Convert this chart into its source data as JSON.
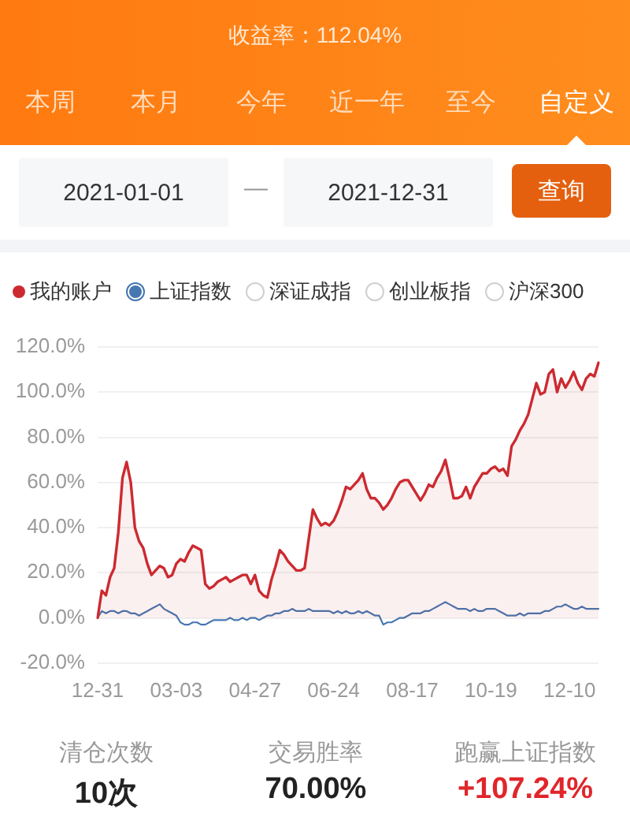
{
  "chart_data": {
    "type": "line",
    "subtitle": "收益率：112.04%",
    "annotations": [
      "本周",
      "本月",
      "今年",
      "近一年",
      "至今",
      "自定义",
      "2021-01-01",
      "—",
      "2021-12-31",
      "查询",
      "深证成指",
      "创业板指",
      "沪深300",
      "清仓次数",
      "10次",
      "交易胜率",
      "70.00%",
      "跑赢上证指数",
      "+107.24%"
    ],
    "categories": [
      "12-31",
      null,
      null,
      null,
      null,
      null,
      null,
      null,
      null,
      null,
      null,
      null,
      null,
      null,
      null,
      null,
      null,
      null,
      null,
      "03-03",
      null,
      null,
      null,
      null,
      null,
      null,
      null,
      null,
      null,
      null,
      null,
      null,
      null,
      null,
      null,
      null,
      null,
      null,
      "04-27",
      null,
      null,
      null,
      null,
      null,
      null,
      null,
      null,
      null,
      null,
      null,
      null,
      null,
      null,
      null,
      null,
      null,
      null,
      "06-24",
      null,
      null,
      null,
      null,
      null,
      null,
      null,
      null,
      null,
      null,
      null,
      null,
      null,
      null,
      null,
      null,
      null,
      null,
      "08-17",
      null,
      null,
      null,
      null,
      null,
      null,
      null,
      null,
      null,
      null,
      null,
      null,
      null,
      null,
      null,
      null,
      null,
      null,
      "10-19",
      null,
      null,
      null,
      null,
      null,
      null,
      null,
      null,
      null,
      null,
      null,
      null,
      null,
      null,
      null,
      null,
      null,
      null,
      "12-10",
      null,
      null,
      null,
      null,
      null,
      null,
      null
    ],
    "series": [
      {
        "name": "我的账户",
        "type": "area",
        "color": "#cc2a30",
        "values": [
          0,
          12,
          10,
          18,
          22,
          38,
          62,
          69,
          60,
          40,
          34,
          31,
          24,
          19,
          21,
          23,
          22,
          18,
          19,
          24,
          26,
          25,
          29,
          32,
          31,
          30,
          15,
          13,
          14,
          16,
          17,
          18,
          16,
          17,
          18,
          19,
          19,
          15,
          19,
          12,
          10,
          9,
          17,
          23,
          30,
          28,
          25,
          23,
          21,
          21,
          22,
          35,
          48,
          44,
          41,
          42,
          41,
          43,
          47,
          52,
          58,
          57,
          59,
          61,
          64,
          57,
          53,
          53,
          51,
          48,
          50,
          53,
          57,
          60,
          61,
          61,
          58,
          55,
          52,
          55,
          59,
          58,
          62,
          65,
          70,
          62,
          53,
          53,
          54,
          58,
          53,
          58,
          61,
          64,
          64,
          66,
          67,
          65,
          66,
          63,
          76,
          79,
          83,
          86,
          90,
          97,
          104,
          99,
          100,
          108,
          110,
          100,
          106,
          102,
          105,
          109,
          104,
          101,
          106,
          108,
          107,
          113
        ]
      },
      {
        "name": "上证指数",
        "type": "line",
        "color": "#4677b0",
        "values": [
          0,
          3,
          2,
          3,
          3,
          2,
          3,
          3,
          2,
          2,
          1,
          2,
          3,
          4,
          5,
          6,
          4,
          3,
          2,
          1,
          -2,
          -3,
          -3,
          -2,
          -2,
          -3,
          -3,
          -2,
          -1,
          -1,
          -1,
          -1,
          0,
          -1,
          -1,
          0,
          -1,
          0,
          0,
          -1,
          0,
          1,
          1,
          2,
          2,
          3,
          3,
          4,
          3,
          3,
          3,
          4,
          3,
          3,
          3,
          3,
          3,
          2,
          3,
          2,
          3,
          2,
          2,
          3,
          2,
          3,
          2,
          1,
          1,
          -3,
          -2,
          -2,
          -1,
          0,
          0,
          1,
          2,
          2,
          2,
          3,
          3,
          4,
          5,
          6,
          7,
          6,
          5,
          4,
          4,
          4,
          3,
          4,
          3,
          3,
          4,
          4,
          4,
          3,
          2,
          1,
          1,
          1,
          2,
          1,
          2,
          2,
          2,
          2,
          3,
          3,
          4,
          5,
          5,
          6,
          5,
          4,
          4,
          5,
          4,
          4,
          4,
          4
        ]
      }
    ],
    "ylim": [
      -20,
      120
    ],
    "yticks": [
      {
        "value": -20,
        "label": "-20.0%"
      },
      {
        "value": 0,
        "label": "0.0%"
      },
      {
        "value": 20,
        "label": "20.0%"
      },
      {
        "value": 40,
        "label": "40.0%"
      },
      {
        "value": 60,
        "label": "60.0%"
      },
      {
        "value": 80,
        "label": "80.0%"
      },
      {
        "value": 100,
        "label": "100.0%"
      },
      {
        "value": 120,
        "label": "120.0%"
      }
    ],
    "grid": "y",
    "legend": "top"
  }
}
